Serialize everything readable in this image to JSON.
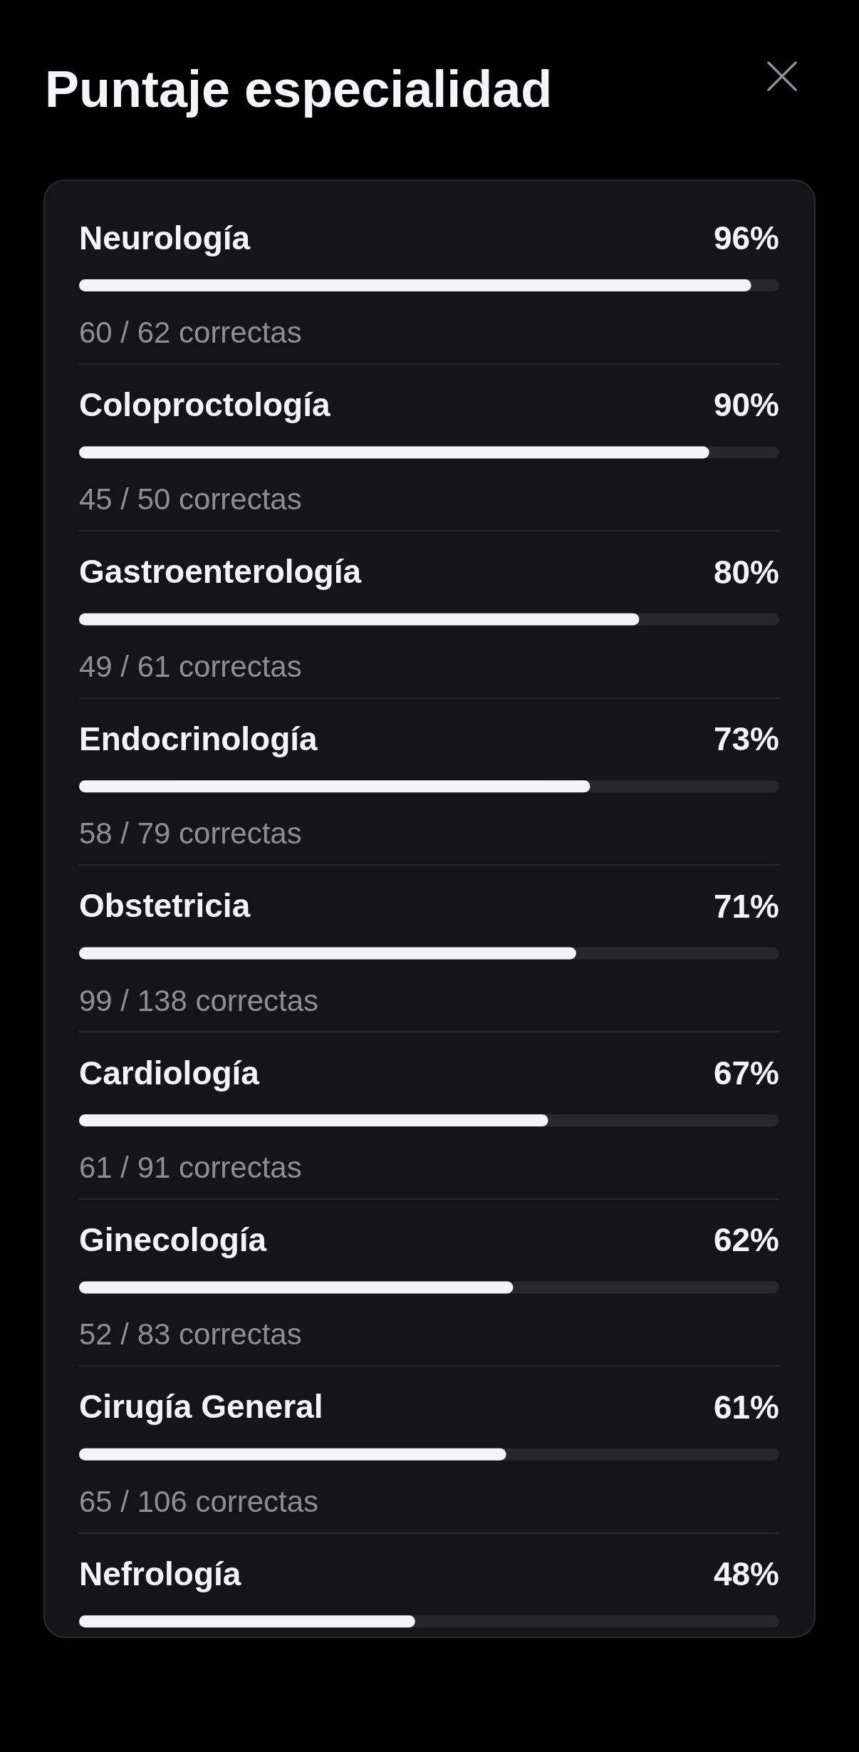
{
  "chart_data": {
    "type": "bar",
    "orientation": "horizontal",
    "title": "Puntaje especialidad",
    "categories": [
      "Neurología",
      "Coloproctología",
      "Gastroenterología",
      "Endocrinología",
      "Obstetricia",
      "Cardiología",
      "Ginecología",
      "Cirugía General",
      "Nefrología"
    ],
    "values": [
      96,
      90,
      80,
      73,
      71,
      67,
      62,
      61,
      48
    ],
    "value_labels": [
      "96%",
      "90%",
      "80%",
      "73%",
      "71%",
      "67%",
      "62%",
      "61%",
      "48%"
    ],
    "color": "#f2f2f7",
    "xlim": [
      0,
      100
    ],
    "tick_labels": "y",
    "annotations": [
      "60 / 62 correctas",
      "45 / 50 correctas",
      "49 / 61 correctas",
      "58 / 79 correctas",
      "99 / 138 correctas",
      "61 / 91 correctas",
      "52 / 83 correctas",
      "65 / 106 correctas"
    ]
  }
}
